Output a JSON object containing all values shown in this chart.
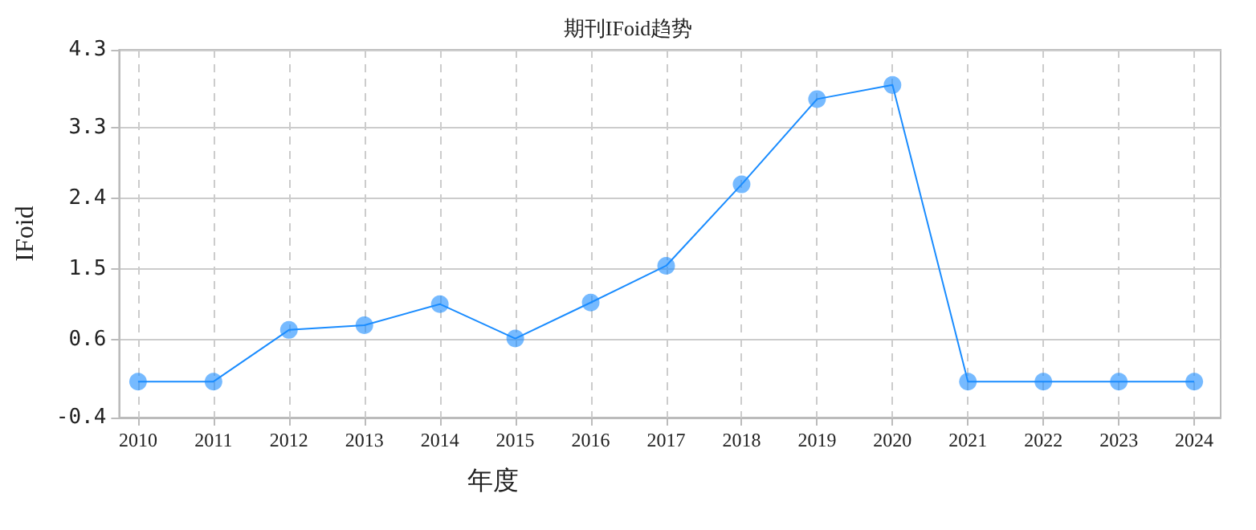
{
  "chart_data": {
    "type": "line",
    "title": "期刊IFoid趋势",
    "xlabel": "年度",
    "ylabel": "IFoid",
    "categories": [
      "2010",
      "2011",
      "2012",
      "2013",
      "2014",
      "2015",
      "2016",
      "2017",
      "2018",
      "2019",
      "2020",
      "2021",
      "2022",
      "2023",
      "2024"
    ],
    "series": [
      {
        "color": "#1a8cff",
        "values": [
          0.06,
          0.06,
          0.72,
          0.78,
          1.05,
          0.61,
          1.07,
          1.54,
          2.58,
          3.67,
          3.85,
          0.06,
          0.06,
          0.06,
          0.06
        ]
      }
    ],
    "ylim": [
      -0.4,
      4.3
    ],
    "yticks": [
      -0.4,
      0.6,
      1.5,
      2.4,
      3.3,
      4.3
    ],
    "grid": true,
    "marker": "circle",
    "line_style": "solid"
  }
}
